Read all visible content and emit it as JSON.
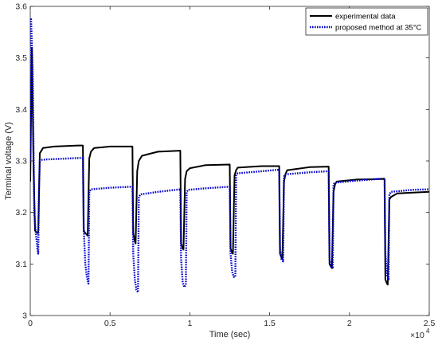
{
  "chart_data": {
    "type": "line",
    "xlabel": "Time (sec)",
    "ylabel": "Terminal voltage (V)",
    "xlim": [
      0,
      2.5
    ],
    "ylim": [
      3.0,
      3.6
    ],
    "x_multiplier": "×10",
    "x_multiplier_exp": "4",
    "x_ticks": [
      0,
      0.5,
      1,
      1.5,
      2,
      2.5
    ],
    "x_tick_labels": [
      "0",
      "0.5",
      "1",
      "1.5",
      "2",
      "2.5"
    ],
    "y_ticks": [
      3.0,
      3.1,
      3.2,
      3.3,
      3.4,
      3.5,
      3.6
    ],
    "y_tick_labels": [
      "3",
      "3.1",
      "3.2",
      "3.3",
      "3.4",
      "3.5",
      "3.6"
    ],
    "grid": false,
    "legend_position": "top-right",
    "series": [
      {
        "name": "experimental data",
        "color": "#000000",
        "style": "solid",
        "x": [
          0,
          0.01,
          0.02,
          0.03,
          0.045,
          0.05,
          0.06,
          0.08,
          0.15,
          0.3,
          0.33,
          0.335,
          0.345,
          0.36,
          0.37,
          0.38,
          0.4,
          0.5,
          0.64,
          0.645,
          0.655,
          0.66,
          0.67,
          0.68,
          0.7,
          0.8,
          0.94,
          0.945,
          0.955,
          0.96,
          0.97,
          0.98,
          1.0,
          1.1,
          1.25,
          1.255,
          1.265,
          1.27,
          1.28,
          1.29,
          1.3,
          1.45,
          1.56,
          1.565,
          1.575,
          1.58,
          1.59,
          1.6,
          1.61,
          1.75,
          1.87,
          1.875,
          1.885,
          1.89,
          1.9,
          1.91,
          1.92,
          2.05,
          2.22,
          2.225,
          2.235,
          2.24,
          2.25,
          2.26,
          2.3,
          2.5
        ],
        "y": [
          3.26,
          3.52,
          3.3,
          3.165,
          3.16,
          3.16,
          3.315,
          3.325,
          3.328,
          3.33,
          3.33,
          3.165,
          3.16,
          3.155,
          3.305,
          3.318,
          3.325,
          3.328,
          3.328,
          3.16,
          3.145,
          3.14,
          3.28,
          3.3,
          3.31,
          3.318,
          3.32,
          3.14,
          3.13,
          3.128,
          3.265,
          3.28,
          3.286,
          3.292,
          3.293,
          3.13,
          3.122,
          3.12,
          3.272,
          3.282,
          3.287,
          3.29,
          3.29,
          3.12,
          3.112,
          3.11,
          3.26,
          3.275,
          3.282,
          3.288,
          3.289,
          3.1,
          3.094,
          3.092,
          3.24,
          3.255,
          3.26,
          3.264,
          3.265,
          3.07,
          3.062,
          3.06,
          3.225,
          3.23,
          3.237,
          3.24
        ]
      },
      {
        "name": "proposed method at 35°C",
        "color": "#0000cc",
        "style": "dotted",
        "x": [
          0,
          0.005,
          0.015,
          0.025,
          0.035,
          0.045,
          0.05,
          0.055,
          0.06,
          0.07,
          0.1,
          0.33,
          0.335,
          0.345,
          0.355,
          0.365,
          0.37,
          0.38,
          0.5,
          0.64,
          0.645,
          0.655,
          0.665,
          0.675,
          0.68,
          0.69,
          0.8,
          0.94,
          0.945,
          0.955,
          0.965,
          0.975,
          0.98,
          0.99,
          1.1,
          1.25,
          1.255,
          1.265,
          1.275,
          1.285,
          1.29,
          1.3,
          1.45,
          1.56,
          1.565,
          1.575,
          1.585,
          1.59,
          1.6,
          1.75,
          1.87,
          1.875,
          1.885,
          1.895,
          1.9,
          1.91,
          2.05,
          2.22,
          2.225,
          2.235,
          2.245,
          2.25,
          2.26,
          2.4,
          2.5
        ],
        "y": [
          3.3,
          3.575,
          3.48,
          3.2,
          3.16,
          3.13,
          3.12,
          3.25,
          3.3,
          3.302,
          3.303,
          3.306,
          3.17,
          3.1,
          3.075,
          3.062,
          3.24,
          3.245,
          3.248,
          3.25,
          3.12,
          3.07,
          3.05,
          3.045,
          3.23,
          3.235,
          3.24,
          3.245,
          3.11,
          3.065,
          3.055,
          3.06,
          3.24,
          3.244,
          3.247,
          3.25,
          3.12,
          3.085,
          3.075,
          3.075,
          3.272,
          3.276,
          3.28,
          3.283,
          3.13,
          3.108,
          3.105,
          3.27,
          3.274,
          3.278,
          3.28,
          3.11,
          3.095,
          3.093,
          3.255,
          3.258,
          3.262,
          3.266,
          3.12,
          3.08,
          3.07,
          3.235,
          3.24,
          3.244,
          3.245
        ]
      }
    ]
  }
}
